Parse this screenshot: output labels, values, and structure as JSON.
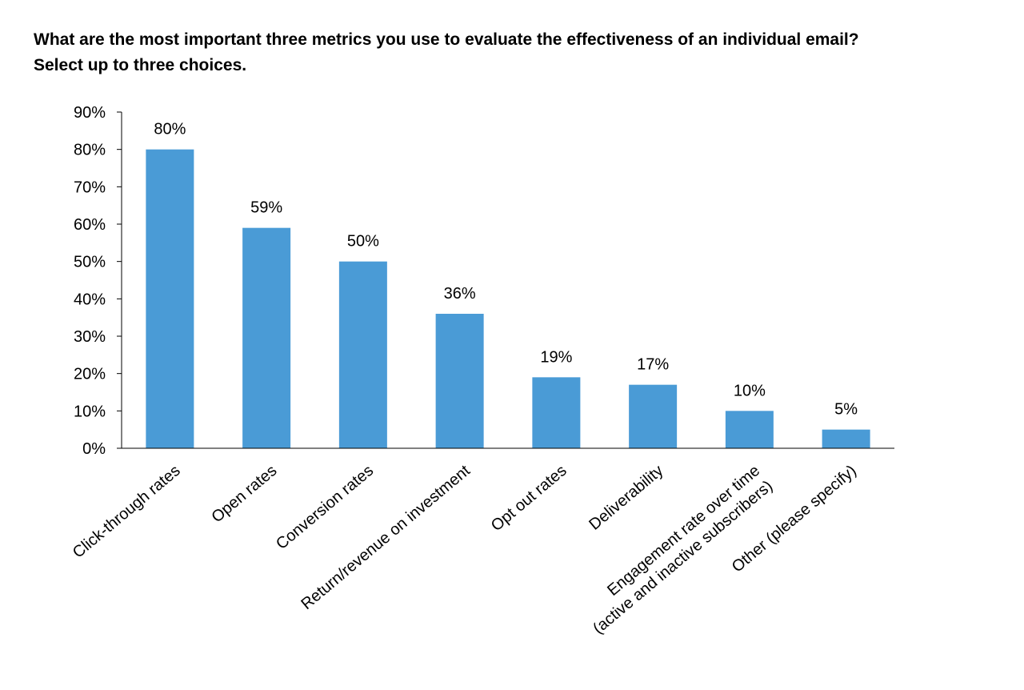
{
  "title_lines": [
    "What are the most important three metrics you use to evaluate the effectiveness of an individual email?",
    " Select up to three choices."
  ],
  "chart_data": {
    "type": "bar",
    "categories": [
      "Click-through rates",
      "Open rates",
      "Conversion rates",
      "Return/revenue on investment",
      "Opt out rates",
      "Deliverability",
      "Engagement rate over time\n(active and inactive subscribers)",
      "Other (please specify)"
    ],
    "values": [
      80,
      59,
      50,
      36,
      19,
      17,
      10,
      5
    ],
    "data_labels": [
      "80%",
      "59%",
      "50%",
      "36%",
      "19%",
      "17%",
      "10%",
      "5%"
    ],
    "y_ticks": [
      0,
      10,
      20,
      30,
      40,
      50,
      60,
      70,
      80,
      90
    ],
    "y_tick_labels": [
      "0%",
      "10%",
      "20%",
      "30%",
      "40%",
      "50%",
      "60%",
      "70%",
      "80%",
      "90%"
    ],
    "ylim": [
      0,
      90
    ],
    "grid": false,
    "legend": "none",
    "bar_color": "#4a9bd6",
    "axis_color": "#000000"
  }
}
